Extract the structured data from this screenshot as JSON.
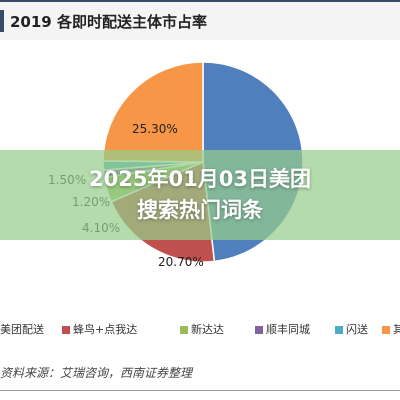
{
  "chart_data": {
    "type": "pie",
    "title": "2019 各即时配送主体市占率",
    "slices": [
      {
        "name": "美团配送",
        "value": 49.1,
        "color": "#4f7fbd"
      },
      {
        "name": "蜂鸟+点我达",
        "value": 20.7,
        "label": "20.70%",
        "color": "#c0504d"
      },
      {
        "name": "新达达",
        "value": 4.1,
        "label": "4.10%",
        "color": "#9bbb59"
      },
      {
        "name": "顺丰同城",
        "value": 1.2,
        "label": "1.20%",
        "color": "#8064a2"
      },
      {
        "name": "闪送",
        "value": 1.5,
        "label": "1.50%",
        "color": "#4bacc6"
      },
      {
        "name": "其他",
        "value": 25.3,
        "label": "25.30%",
        "color": "#f79646"
      }
    ],
    "legend_position": "bottom"
  },
  "legend": {
    "items": [
      {
        "label": "美团配送",
        "color": "#4f7fbd"
      },
      {
        "label": "蜂鸟+点我达",
        "color": "#c0504d"
      },
      {
        "label": "新达达",
        "color": "#9bbb59"
      },
      {
        "label": "顺丰同城",
        "color": "#8064a2"
      },
      {
        "label": "闪送",
        "color": "#4bacc6"
      },
      {
        "label": "其他",
        "color": "#f79646"
      }
    ]
  },
  "source": "资料来源：艾瑞咨询，西南证券整理",
  "overlay": {
    "line1": "2025年01月03日美团",
    "line2": "搜索热门词条"
  }
}
